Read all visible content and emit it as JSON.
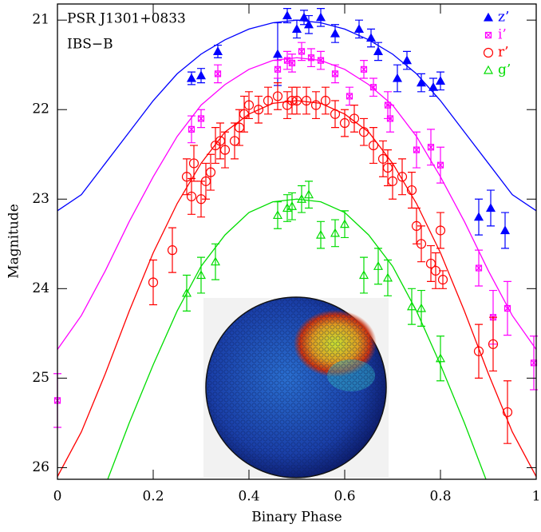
{
  "chart_data": {
    "type": "errorbar-scatter",
    "annotations": [
      "PSR J1301+0833",
      "IBS−B"
    ],
    "xlabel": "Binary Phase",
    "ylabel": "Magnitude",
    "xlim": [
      0,
      1
    ],
    "ylim": [
      26.13,
      20.82
    ],
    "xticks": [
      0,
      0.2,
      0.4,
      0.6,
      0.8,
      1
    ],
    "yticks": [
      21,
      22,
      23,
      24,
      25,
      26
    ],
    "inverted_y": true,
    "legend": "upper-right",
    "model_x": [
      0,
      0.05,
      0.1,
      0.15,
      0.2,
      0.25,
      0.3,
      0.35,
      0.4,
      0.45,
      0.5,
      0.55,
      0.6,
      0.65,
      0.7,
      0.75,
      0.8,
      0.85,
      0.9,
      0.95,
      1
    ],
    "series": [
      {
        "name": "z’",
        "color": "#0000ff",
        "marker": "filled-triangle",
        "x": [
          0.28,
          0.3,
          0.335,
          0.46,
          0.48,
          0.5,
          0.515,
          0.525,
          0.55,
          0.58,
          0.63,
          0.655,
          0.67,
          0.71,
          0.73,
          0.76,
          0.785,
          0.8,
          0.88,
          0.905,
          0.935
        ],
        "values": [
          21.65,
          21.62,
          21.35,
          21.38,
          20.95,
          21.1,
          20.97,
          21.05,
          20.97,
          21.15,
          21.1,
          21.2,
          21.35,
          21.65,
          21.45,
          21.7,
          21.75,
          21.68,
          23.2,
          23.1,
          23.35
        ],
        "errors": [
          0.07,
          0.08,
          0.07,
          0.35,
          0.08,
          0.1,
          0.08,
          0.1,
          0.1,
          0.1,
          0.1,
          0.1,
          0.1,
          0.15,
          0.1,
          0.1,
          0.1,
          0.1,
          0.2,
          0.2,
          0.2
        ],
        "model_values": [
          23.13,
          22.95,
          22.6,
          22.25,
          21.9,
          21.6,
          21.38,
          21.22,
          21.1,
          21.03,
          21.0,
          21.03,
          21.1,
          21.22,
          21.38,
          21.6,
          21.9,
          22.25,
          22.6,
          22.95,
          23.13
        ]
      },
      {
        "name": "i’",
        "color": "#ff00ff",
        "marker": "cross-box",
        "x": [
          0.0,
          0.28,
          0.3,
          0.335,
          0.46,
          0.48,
          0.49,
          0.51,
          0.53,
          0.55,
          0.58,
          0.61,
          0.64,
          0.66,
          0.69,
          0.695,
          0.75,
          0.78,
          0.8,
          0.88,
          0.91,
          0.94,
          0.995
        ],
        "values": [
          25.25,
          22.22,
          22.1,
          21.6,
          21.55,
          21.45,
          21.48,
          21.35,
          21.42,
          21.45,
          21.6,
          21.85,
          21.55,
          21.75,
          21.95,
          22.1,
          22.45,
          22.42,
          22.62,
          23.77,
          24.32,
          24.22,
          24.83
        ],
        "errors": [
          0.3,
          0.15,
          0.1,
          0.1,
          0.1,
          0.1,
          0.1,
          0.1,
          0.1,
          0.1,
          0.1,
          0.1,
          0.1,
          0.1,
          0.15,
          0.15,
          0.2,
          0.2,
          0.2,
          0.2,
          0.3,
          0.3,
          0.3
        ],
        "model_values": [
          24.68,
          24.3,
          23.8,
          23.25,
          22.75,
          22.3,
          21.95,
          21.72,
          21.55,
          21.45,
          21.42,
          21.45,
          21.55,
          21.72,
          21.95,
          22.3,
          22.75,
          23.25,
          23.8,
          24.3,
          24.68
        ]
      },
      {
        "name": "r’",
        "color": "#ff0000",
        "marker": "open-circle",
        "x": [
          0.2,
          0.24,
          0.27,
          0.28,
          0.285,
          0.3,
          0.31,
          0.32,
          0.33,
          0.34,
          0.35,
          0.37,
          0.38,
          0.39,
          0.4,
          0.42,
          0.44,
          0.46,
          0.48,
          0.49,
          0.5,
          0.52,
          0.54,
          0.56,
          0.58,
          0.6,
          0.62,
          0.64,
          0.66,
          0.68,
          0.69,
          0.7,
          0.72,
          0.74,
          0.75,
          0.76,
          0.78,
          0.79,
          0.8,
          0.805,
          0.88,
          0.91,
          0.94
        ],
        "values": [
          23.93,
          23.57,
          22.75,
          22.97,
          22.6,
          23.0,
          22.8,
          22.7,
          22.4,
          22.35,
          22.45,
          22.35,
          22.2,
          22.05,
          21.95,
          22.0,
          21.9,
          21.85,
          21.95,
          21.9,
          21.9,
          21.9,
          21.95,
          21.9,
          22.05,
          22.15,
          22.1,
          22.25,
          22.4,
          22.55,
          22.65,
          22.8,
          22.75,
          22.9,
          23.3,
          23.5,
          23.72,
          23.8,
          23.35,
          23.9,
          24.7,
          24.62,
          25.38
        ],
        "errors": [
          0.25,
          0.25,
          0.2,
          0.2,
          0.2,
          0.2,
          0.2,
          0.2,
          0.2,
          0.2,
          0.2,
          0.2,
          0.2,
          0.2,
          0.15,
          0.15,
          0.15,
          0.15,
          0.15,
          0.15,
          0.15,
          0.15,
          0.15,
          0.15,
          0.15,
          0.15,
          0.15,
          0.15,
          0.2,
          0.2,
          0.2,
          0.2,
          0.2,
          0.2,
          0.2,
          0.2,
          0.2,
          0.2,
          0.2,
          0.1,
          0.3,
          0.3,
          0.35
        ],
        "model_values": [
          26.1,
          25.6,
          24.95,
          24.25,
          23.6,
          23.05,
          22.6,
          22.25,
          22.05,
          21.93,
          21.9,
          21.93,
          22.05,
          22.25,
          22.6,
          23.05,
          23.6,
          24.25,
          24.95,
          25.6,
          26.1
        ]
      },
      {
        "name": "g’",
        "color": "#00dd00",
        "marker": "open-triangle",
        "x": [
          0.27,
          0.3,
          0.33,
          0.46,
          0.48,
          0.49,
          0.51,
          0.525,
          0.55,
          0.58,
          0.6,
          0.64,
          0.67,
          0.69,
          0.74,
          0.76,
          0.8
        ],
        "values": [
          24.05,
          23.85,
          23.7,
          23.18,
          23.1,
          23.08,
          23.0,
          22.95,
          23.4,
          23.38,
          23.28,
          23.85,
          23.75,
          23.88,
          24.2,
          24.22,
          24.78
        ],
        "errors": [
          0.2,
          0.2,
          0.2,
          0.15,
          0.15,
          0.15,
          0.15,
          0.15,
          0.15,
          0.15,
          0.15,
          0.2,
          0.2,
          0.2,
          0.2,
          0.2,
          0.25
        ],
        "model_values": [
          null,
          null,
          26.2,
          25.5,
          24.85,
          24.25,
          23.75,
          23.4,
          23.15,
          23.03,
          23.0,
          23.03,
          23.15,
          23.4,
          23.75,
          24.25,
          24.85,
          25.5,
          26.2,
          null,
          null
        ]
      }
    ]
  }
}
